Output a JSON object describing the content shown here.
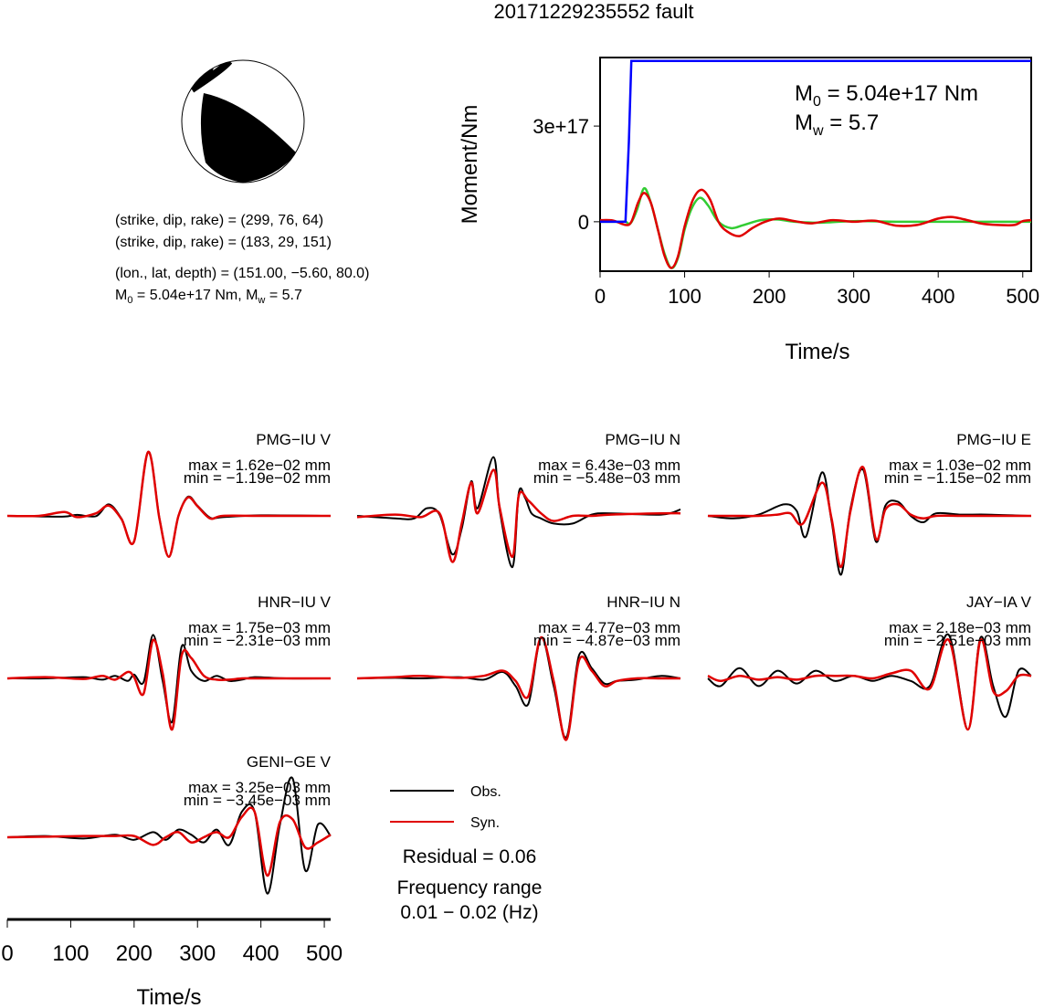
{
  "figure_title": "20171229235552 fault",
  "mechanism": {
    "plane1": "(strike, dip, rake) = (299, 76, 64)",
    "plane2": "(strike, dip, rake) = (183, 29, 151)",
    "location": "(lon., lat, depth) = (151.00, −5.60, 80.0)",
    "moment_prefix": "M",
    "moment_sub": "0",
    "moment_mid": " = 5.04e+17 Nm, M",
    "mw_sub": "w",
    "mw_suffix": " = 5.7"
  },
  "chart_data": [
    {
      "type": "line",
      "name": "moment_rate",
      "xlabel": "Time/s",
      "ylabel": "Moment/Nm",
      "xlim": [
        0,
        510
      ],
      "ylim": [
        -1.55e+17,
        5.15e+17
      ],
      "xticks": [
        "0",
        "100",
        "200",
        "300",
        "400",
        "500"
      ],
      "yticks": [
        "0",
        "3e+17"
      ],
      "annotation": {
        "m0_prefix": "M",
        "m0_sub": "0",
        "m0_value": " = 5.04e+17 Nm",
        "mw_prefix": "M",
        "mw_sub": "w",
        "mw_value": " = 5.7"
      },
      "colors": {
        "cumulative": "#0000ff",
        "red": "#e00000",
        "green": "#33cc33"
      },
      "series": [
        {
          "key": "cumulative",
          "x": [
            0,
            30,
            34,
            37,
            510
          ],
          "y": [
            0,
            0,
            2.5e+17,
            5.04e+17,
            5.04e+17
          ]
        },
        {
          "key": "green",
          "x": [
            0,
            20,
            30,
            36,
            44,
            52,
            60,
            68,
            76,
            84,
            92,
            100,
            108,
            118,
            128,
            140,
            155,
            170,
            190,
            210,
            230,
            260,
            300,
            350,
            400,
            450,
            510
          ],
          "y": [
            0,
            0,
            0,
            -5000000000000000.0,
            4e+16,
            1.05e+17,
            6e+16,
            -2e+16,
            -9.8e+16,
            -1.45e+17,
            -1.15e+17,
            -2.5e+16,
            4e+16,
            7.5e+16,
            5e+16,
            0,
            -2e+16,
            -1e+16,
            5000000000000000.0,
            7000000000000000.0,
            0,
            -3000000000000000.0,
            2000000000000000.0,
            0,
            0,
            0,
            0
          ]
        },
        {
          "key": "red",
          "x": [
            0,
            15,
            30,
            37,
            45,
            52,
            60,
            68,
            76,
            84,
            92,
            100,
            110,
            120,
            130,
            140,
            150,
            165,
            180,
            195,
            212,
            230,
            250,
            275,
            300,
            325,
            350,
            375,
            400,
            415,
            430,
            450,
            470,
            490,
            500,
            510
          ],
          "y": [
            5000000000000000.0,
            4000000000000000.0,
            -1e+16,
            0,
            6e+16,
            9e+16,
            6e+16,
            -2e+16,
            -1.05e+17,
            -1.45e+17,
            -1.1e+17,
            -1.5e+16,
            7e+16,
            1e+17,
            7e+16,
            0,
            -3e+16,
            -4.5e+16,
            -2e+16,
            0,
            1e+16,
            2000000000000000.0,
            -5000000000000000.0,
            5000000000000000.0,
            0,
            3000000000000000.0,
            -1.2e+16,
            -1e+16,
            1e+16,
            1.5e+16,
            8000000000000000.0,
            -5000000000000000.0,
            -1e+16,
            -1e+16,
            2000000000000000.0,
            5000000000000000.0
          ]
        }
      ]
    },
    {
      "type": "line",
      "name": "waveforms",
      "xlabel": "Time/s",
      "xlim": [
        0,
        510
      ],
      "xticks": [
        "0",
        "100",
        "200",
        "300",
        "400",
        "500"
      ],
      "legend": {
        "obs": "Obs.",
        "syn": "Syn."
      },
      "colors": {
        "obs": "#000000",
        "syn": "#e00000"
      },
      "residual": "Residual = 0.06",
      "freq_label": "Frequency range",
      "freq_value": "0.01 − 0.02 (Hz)",
      "panels": [
        {
          "station": "PMG−IU V",
          "max": "max = 1.62e−02 mm",
          "min": "min = −1.19e−02 mm",
          "obs": {
            "x": [
              0,
              50,
              90,
              110,
              140,
              160,
              180,
              200,
              222,
              240,
              255,
              270,
              285,
              300,
              320,
              340,
              400,
              510
            ],
            "y": [
              0,
              -0.02,
              -0.03,
              0.04,
              -0.01,
              0.45,
              -0.1,
              -1.0,
              2.5,
              -0.1,
              -1.6,
              0,
              0.75,
              0.4,
              -0.07,
              -0.05,
              0.02,
              0
            ]
          },
          "syn": {
            "x": [
              0,
              50,
              90,
              110,
              140,
              160,
              180,
              200,
              222,
              240,
              255,
              270,
              285,
              300,
              320,
              340,
              400,
              510
            ],
            "y": [
              0,
              0,
              0.15,
              -0.05,
              0.1,
              0.4,
              -0.12,
              -1.0,
              2.5,
              -0.12,
              -1.6,
              0,
              0.72,
              0.38,
              -0.1,
              0,
              0,
              0
            ]
          }
        },
        {
          "station": "PMG−IU N",
          "max": "max = 6.43e−03 mm",
          "min": "min = −5.48e−03 mm",
          "obs": {
            "x": [
              0,
              60,
              90,
              110,
              130,
              150,
              165,
              180,
              190,
              215,
              225,
              245,
              255,
              265,
              275,
              290,
              310,
              340,
              370,
              400,
              480,
              510
            ],
            "y": [
              0,
              -0.1,
              -0.1,
              0.3,
              0.05,
              -1.5,
              -0.5,
              1.35,
              0.3,
              2.3,
              0.2,
              -2.0,
              0.9,
              0.7,
              0.1,
              -0.1,
              -0.3,
              -0.3,
              0.05,
              0.1,
              0.05,
              0.25
            ]
          },
          "syn": {
            "x": [
              0,
              60,
              100,
              130,
              150,
              165,
              180,
              190,
              215,
              225,
              245,
              255,
              270,
              290,
              310,
              340,
              370,
              400,
              480,
              510
            ],
            "y": [
              -0.05,
              0.05,
              -0.05,
              0.1,
              -1.8,
              -0.3,
              1.3,
              0.1,
              1.8,
              0.3,
              -1.6,
              0.8,
              0.6,
              0.1,
              -0.2,
              0,
              0,
              0.05,
              0.1,
              0.1
            ]
          }
        },
        {
          "station": "PMG−IU E",
          "max": "max = 1.03e−02 mm",
          "min": "min = −1.15e−02 mm",
          "obs": {
            "x": [
              0,
              40,
              80,
              120,
              140,
              155,
              180,
              195,
              210,
              225,
              245,
              265,
              280,
              300,
              320,
              340,
              360,
              400,
              440,
              510
            ],
            "y": [
              0,
              -0.1,
              0.05,
              0.45,
              0.2,
              -0.8,
              1.7,
              -0.2,
              -2.3,
              0.3,
              1.8,
              -1.0,
              0.4,
              0.55,
              0.0,
              -0.25,
              0.1,
              0.05,
              0.05,
              0
            ]
          },
          "syn": {
            "x": [
              0,
              40,
              80,
              110,
              130,
              150,
              180,
              195,
              210,
              225,
              245,
              265,
              280,
              300,
              320,
              340,
              360,
              400,
              440,
              510
            ],
            "y": [
              0,
              0,
              0,
              0.05,
              0.1,
              -0.3,
              1.3,
              -0.1,
              -2.0,
              0.2,
              1.9,
              -0.9,
              0.25,
              0.45,
              0.05,
              -0.1,
              0,
              0,
              0,
              0
            ]
          }
        },
        {
          "station": "HNR−IU V",
          "max": "max = 1.75e−03 mm",
          "min": "min = −2.31e−03 mm",
          "obs": {
            "x": [
              0,
              60,
              120,
              150,
              170,
              190,
              200,
              215,
              230,
              245,
              260,
              275,
              290,
              310,
              330,
              350,
              370,
              390,
              440,
              510
            ],
            "y": [
              0,
              0,
              0.05,
              -0.05,
              0.1,
              -0.1,
              0.15,
              -0.15,
              1.7,
              -0.1,
              -1.7,
              1.25,
              0.3,
              -0.1,
              0.1,
              -0.1,
              -0.05,
              0.05,
              0,
              0
            ]
          },
          "syn": {
            "x": [
              0,
              60,
              120,
              150,
              170,
              190,
              200,
              215,
              230,
              245,
              260,
              275,
              290,
              310,
              330,
              350,
              370,
              390,
              440,
              510
            ],
            "y": [
              0,
              0.05,
              -0.02,
              0.1,
              -0.05,
              0.25,
              0.05,
              -0.6,
              1.5,
              0.2,
              -2.0,
              0.9,
              0.8,
              0.1,
              -0.05,
              -0.05,
              0,
              0,
              0,
              0
            ]
          }
        },
        {
          "station": "HNR−IU N",
          "max": "max = 4.77e−03 mm",
          "min": "min = −4.87e−03 mm",
          "obs": {
            "x": [
              0,
              60,
              100,
              160,
              200,
              230,
              250,
              270,
              290,
              310,
              330,
              350,
              370,
              390,
              410,
              440,
              480,
              510
            ],
            "y": [
              0,
              0.02,
              0,
              0.05,
              -0.05,
              0.25,
              -0.3,
              -1.0,
              1.6,
              -0.3,
              -2.3,
              0.9,
              0.4,
              -0.2,
              -0.1,
              -0.05,
              0.1,
              0
            ]
          },
          "syn": {
            "x": [
              0,
              60,
              100,
              160,
              200,
              230,
              250,
              270,
              290,
              310,
              330,
              350,
              370,
              390,
              410,
              440,
              480,
              510
            ],
            "y": [
              0,
              0.05,
              0.1,
              0.02,
              0.1,
              0.3,
              -0.1,
              -0.7,
              1.6,
              -0.1,
              -2.4,
              0.7,
              0.3,
              -0.3,
              -0.1,
              0,
              0,
              0
            ]
          }
        },
        {
          "station": "JAY−IA V",
          "max": "max = 2.18e−03 mm",
          "min": "min = −2.51e−03 mm",
          "obs": {
            "x": [
              0,
              20,
              50,
              80,
              110,
              140,
              170,
              200,
              230,
              260,
              290,
              320,
              350,
              380,
              410,
              430,
              450,
              470,
              490,
              510
            ],
            "y": [
              0,
              -0.3,
              0.4,
              -0.3,
              0.3,
              -0.2,
              0.3,
              -0.1,
              0.1,
              -0.1,
              0.1,
              -0.1,
              -0.3,
              1.7,
              -2.0,
              1.6,
              -0.3,
              -1.5,
              0.3,
              0.1
            ]
          },
          "syn": {
            "x": [
              0,
              20,
              50,
              80,
              110,
              140,
              170,
              200,
              230,
              260,
              290,
              320,
              350,
              380,
              410,
              430,
              450,
              470,
              490,
              510
            ],
            "y": [
              0.1,
              -0.1,
              0.1,
              -0.05,
              0.05,
              -0.05,
              0.1,
              0.1,
              0.1,
              0.0,
              0.2,
              0.3,
              -0.4,
              1.5,
              -2.0,
              1.5,
              -0.5,
              -0.5,
              0.1,
              0.1
            ]
          }
        },
        {
          "station": "GENI−GE V",
          "max": "max = 3.25e−03 mm",
          "min": "min = −3.45e−03 mm",
          "obs": {
            "x": [
              0,
              60,
              120,
              170,
              200,
              230,
              250,
              270,
              290,
              310,
              330,
              350,
              370,
              390,
              410,
              430,
              450,
              470,
              490,
              510
            ],
            "y": [
              0,
              0.05,
              -0.05,
              0.1,
              -0.1,
              0.2,
              -0.1,
              0.3,
              0.1,
              -0.2,
              0.3,
              -0.3,
              1.0,
              1.0,
              -2.2,
              0.5,
              2.3,
              -1.3,
              0.5,
              0.05
            ]
          },
          "syn": {
            "x": [
              0,
              60,
              120,
              170,
              200,
              230,
              250,
              270,
              290,
              310,
              330,
              350,
              370,
              390,
              410,
              430,
              450,
              470,
              490,
              510
            ],
            "y": [
              0,
              0.02,
              0.05,
              0.05,
              0.05,
              -0.3,
              0.0,
              0.2,
              -0.2,
              0.0,
              0.2,
              0.0,
              0.8,
              1.0,
              -1.5,
              0.6,
              0.7,
              -0.4,
              -0.2,
              0.1
            ]
          }
        }
      ]
    }
  ]
}
